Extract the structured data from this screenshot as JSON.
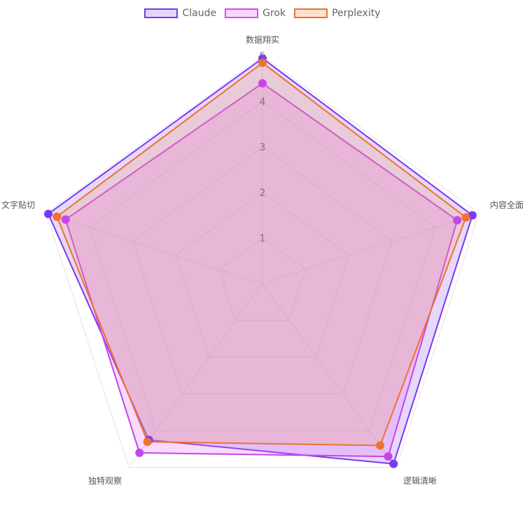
{
  "chart_data": {
    "type": "radar",
    "categories": [
      "数据翔实",
      "内容全面",
      "逻辑清晰",
      "独特观察",
      "文字贴切"
    ],
    "r_ticks": [
      "1",
      "2",
      "3",
      "4",
      "5"
    ],
    "r_range": [
      0,
      5
    ],
    "legend_position": "top",
    "grid": true,
    "series": [
      {
        "name": "Claude",
        "values": [
          4.95,
          4.85,
          4.9,
          4.25,
          4.95
        ],
        "color": "#7c3aed",
        "fill": "rgba(124,58,237,0.2)"
      },
      {
        "name": "Grok",
        "values": [
          4.4,
          4.5,
          4.7,
          4.6,
          4.55
        ],
        "color": "#c546e8",
        "fill": "rgba(226,110,242,0.25)"
      },
      {
        "name": "Perplexity",
        "values": [
          4.85,
          4.7,
          4.4,
          4.3,
          4.75
        ],
        "color": "#ee7230",
        "fill": "rgba(245,160,110,0.25)"
      }
    ]
  }
}
